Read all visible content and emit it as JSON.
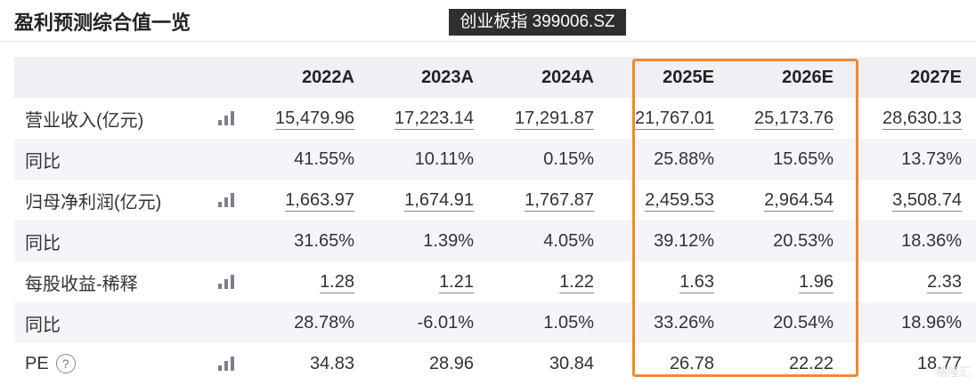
{
  "title": "盈利预测综合值一览",
  "index_tag": "创业板指 399006.SZ",
  "columns": [
    "2022A",
    "2023A",
    "2024A",
    "2025E",
    "2026E",
    "2027E"
  ],
  "rows": [
    {
      "label": "营业收入(亿元)",
      "chart": true,
      "values": [
        "15,479.96",
        "17,223.14",
        "17,291.87",
        "21,767.01",
        "25,173.76",
        "28,630.13"
      ],
      "underline": true
    },
    {
      "label": "同比",
      "chart": false,
      "values": [
        "41.55%",
        "10.11%",
        "0.15%",
        "25.88%",
        "15.65%",
        "13.73%"
      ]
    },
    {
      "label": "归母净利润(亿元)",
      "chart": true,
      "values": [
        "1,663.97",
        "1,674.91",
        "1,767.87",
        "2,459.53",
        "2,964.54",
        "3,508.74"
      ],
      "underline": true
    },
    {
      "label": "同比",
      "chart": false,
      "values": [
        "31.65%",
        "1.39%",
        "4.05%",
        "39.12%",
        "20.53%",
        "18.36%"
      ]
    },
    {
      "label": "每股收益-稀释",
      "chart": true,
      "values": [
        "1.28",
        "1.21",
        "1.22",
        "1.63",
        "1.96",
        "2.33"
      ],
      "underline": true
    },
    {
      "label": "同比",
      "chart": false,
      "values": [
        "28.78%",
        "-6.01%",
        "1.05%",
        "33.26%",
        "20.54%",
        "18.96%"
      ]
    },
    {
      "label": "PE",
      "chart": true,
      "help": true,
      "values": [
        "34.83",
        "28.96",
        "30.84",
        "26.78",
        "22.22",
        "18.77"
      ]
    }
  ],
  "watermark": "格隆汇",
  "colors": {
    "highlight": "#f08a2a",
    "tag_bg": "#2f2f2f",
    "header_bg": "#eef0f4"
  }
}
